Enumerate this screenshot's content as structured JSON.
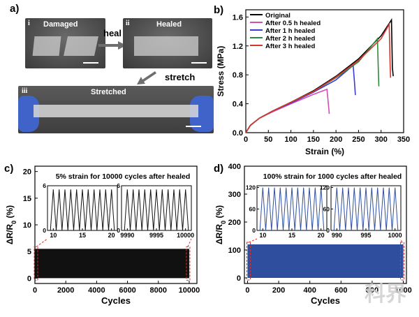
{
  "panel_a": {
    "label": "a)",
    "photo_i": {
      "roman": "i",
      "title": "Damaged"
    },
    "photo_ii": {
      "roman": "ii",
      "title": "Healed"
    },
    "photo_iii": {
      "roman": "iii",
      "title": "Stretched"
    },
    "arrow_heal": "heal",
    "arrow_stretch": "stretch"
  },
  "watermark": "科界",
  "colors": {
    "axis": "#000000",
    "panel_c_signal": "#111111",
    "panel_d_signal": "#2f4f9e",
    "highlight_box": "#d9342b"
  },
  "chart_data": [
    {
      "id": "b",
      "panel_label": "b)",
      "type": "line",
      "xlabel": "Strain (%)",
      "ylabel": "Stress (MPa)",
      "xlim": [
        0,
        350
      ],
      "ylim": [
        0,
        1.7
      ],
      "xticks": [
        0,
        50,
        100,
        150,
        200,
        250,
        300,
        350
      ],
      "yticks": [
        0.0,
        0.4,
        0.8,
        1.2,
        1.6
      ],
      "ytick_labels": [
        "0.0",
        "0.4",
        "0.8",
        "1.2",
        "1.6"
      ],
      "legend_position": "top-left",
      "series": [
        {
          "name": "Original",
          "color": "#000000",
          "x": [
            0,
            10,
            30,
            60,
            100,
            150,
            200,
            250,
            300,
            323,
            325,
            327
          ],
          "y": [
            0,
            0.1,
            0.2,
            0.3,
            0.42,
            0.58,
            0.78,
            1.02,
            1.34,
            1.56,
            0.9,
            0.78
          ]
        },
        {
          "name": "After 0.5 h healed",
          "color": "#d14fb0",
          "x": [
            0,
            10,
            30,
            60,
            100,
            150,
            180,
            183,
            185
          ],
          "y": [
            0,
            0.1,
            0.2,
            0.29,
            0.4,
            0.53,
            0.6,
            0.4,
            0.26
          ]
        },
        {
          "name": "After 1 h healed",
          "color": "#3b3bd6",
          "x": [
            0,
            10,
            30,
            60,
            100,
            150,
            200,
            238,
            241,
            243
          ],
          "y": [
            0,
            0.1,
            0.2,
            0.3,
            0.41,
            0.56,
            0.73,
            0.93,
            0.7,
            0.52
          ]
        },
        {
          "name": "After 2 h healed",
          "color": "#2e8b3a",
          "x": [
            0,
            10,
            30,
            60,
            100,
            150,
            200,
            250,
            292,
            294,
            295
          ],
          "y": [
            0,
            0.1,
            0.2,
            0.3,
            0.42,
            0.57,
            0.76,
            0.98,
            1.3,
            0.85,
            0.64
          ]
        },
        {
          "name": "After 3 h healed",
          "color": "#d9342b",
          "x": [
            0,
            10,
            30,
            60,
            100,
            150,
            200,
            250,
            300,
            318,
            320,
            321
          ],
          "y": [
            0,
            0.1,
            0.2,
            0.3,
            0.42,
            0.57,
            0.77,
            1.0,
            1.3,
            1.5,
            0.95,
            0.76
          ]
        }
      ]
    },
    {
      "id": "c",
      "panel_label": "c)",
      "type": "line",
      "annotation": "5% strain for 10000 cycles after healed",
      "xlabel": "Cycles",
      "ylabel": "ΔR/R0 (%)",
      "xlim": [
        0,
        10500
      ],
      "ylim": [
        -1,
        21
      ],
      "xticks": [
        0,
        2000,
        4000,
        6000,
        8000,
        10000
      ],
      "yticks": [
        0,
        5,
        10,
        15,
        20
      ],
      "signal": {
        "x_start": 0,
        "x_end": 10000,
        "min": 0,
        "max": 5.5
      },
      "insets": [
        {
          "xlim": [
            9,
            21
          ],
          "xticks": [
            10,
            15,
            20
          ],
          "ylim": [
            0,
            6
          ],
          "yticks": [
            0,
            6
          ],
          "cycles_per_unit": 1,
          "peak": 5.5
        },
        {
          "xlim": [
            9989,
            10001
          ],
          "xticks": [
            9990,
            9995,
            10000
          ],
          "ylim": [
            0,
            6
          ],
          "yticks": [
            0,
            6
          ],
          "cycles_per_unit": 1,
          "peak": 5.5
        }
      ]
    },
    {
      "id": "d",
      "panel_label": "d)",
      "type": "line",
      "annotation": "100% strain for 1000 cycles after healed",
      "xlabel": "Cycles",
      "ylabel": "ΔR/R0 (%)",
      "xlim": [
        -20,
        1020
      ],
      "ylim": [
        -20,
        400
      ],
      "xticks": [
        0,
        200,
        400,
        600,
        800,
        1000
      ],
      "yticks": [
        0,
        100,
        200,
        300,
        400
      ],
      "signal": {
        "x_start": 0,
        "x_end": 1000,
        "min": 0,
        "max": 120
      },
      "insets": [
        {
          "xlim": [
            9,
            21
          ],
          "xticks": [
            10,
            15,
            20
          ],
          "ylim": [
            0,
            125
          ],
          "yticks": [
            0,
            60,
            120
          ],
          "cycles_per_unit": 1,
          "peak": 120
        },
        {
          "xlim": [
            989,
            1001
          ],
          "xticks": [
            990,
            995,
            1000
          ],
          "ylim": [
            0,
            125
          ],
          "yticks": [
            0,
            60,
            120
          ],
          "cycles_per_unit": 1,
          "peak": 120
        }
      ]
    }
  ]
}
